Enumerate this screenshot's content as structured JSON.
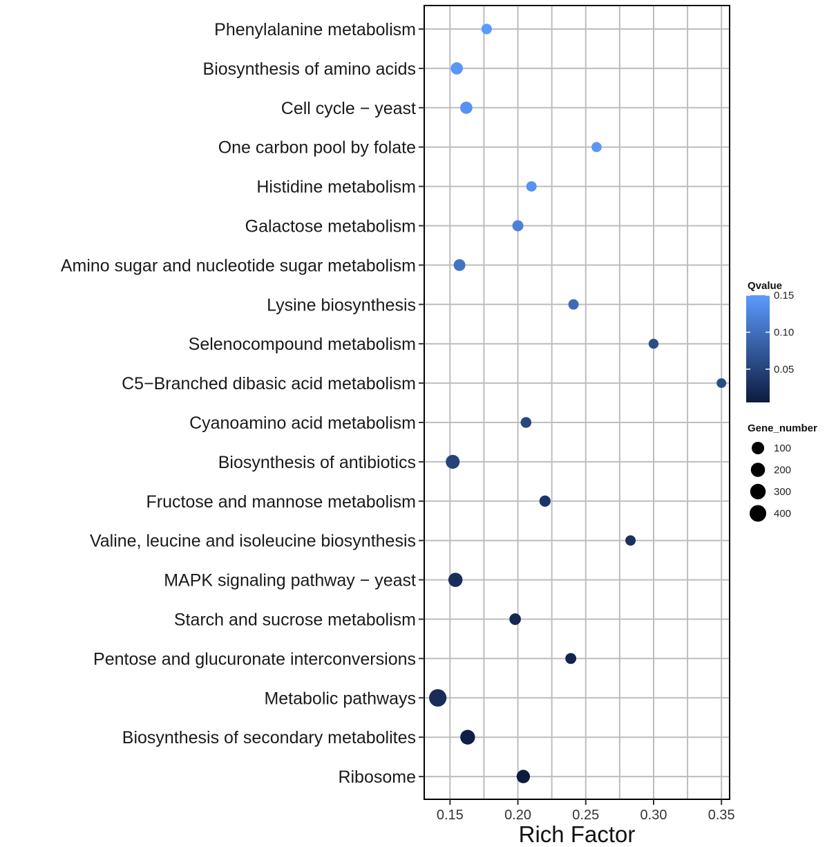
{
  "chart_data": {
    "type": "scatter",
    "title": "",
    "xlabel": "Rich Factor",
    "ylabel": "",
    "xlim": [
      0.131,
      0.356
    ],
    "xticks": [
      0.15,
      0.2,
      0.25,
      0.3,
      0.35
    ],
    "xtick_labels": [
      "0.15",
      "0.20",
      "0.25",
      "0.30",
      "0.35"
    ],
    "grid": true,
    "legend_position": "right",
    "categories": [
      "Phenylalanine metabolism",
      "Biosynthesis of amino acids",
      "Cell cycle − yeast",
      "One carbon pool by folate",
      "Histidine metabolism",
      "Galactose metabolism",
      "Amino sugar and nucleotide sugar metabolism",
      "Lysine biosynthesis",
      "Selenocompound metabolism",
      "C5−Branched dibasic acid metabolism",
      "Cyanoamino acid metabolism",
      "Biosynthesis of antibiotics",
      "Fructose and mannose metabolism",
      "Valine, leucine and isoleucine biosynthesis",
      "MAPK signaling pathway − yeast",
      "Starch and sucrose metabolism",
      "Pentose and glucuronate interconversions",
      "Metabolic pathways",
      "Biosynthesis of secondary metabolites",
      "Ribosome"
    ],
    "points": [
      {
        "pathway": "Phenylalanine metabolism",
        "rich_factor": 0.177,
        "qvalue": 0.15,
        "gene_number": 30
      },
      {
        "pathway": "Biosynthesis of amino acids",
        "rich_factor": 0.155,
        "qvalue": 0.145,
        "gene_number": 90
      },
      {
        "pathway": "Cell cycle − yeast",
        "rich_factor": 0.162,
        "qvalue": 0.14,
        "gene_number": 90
      },
      {
        "pathway": "One carbon pool by folate",
        "rich_factor": 0.258,
        "qvalue": 0.145,
        "gene_number": 20
      },
      {
        "pathway": "Histidine metabolism",
        "rich_factor": 0.21,
        "qvalue": 0.14,
        "gene_number": 25
      },
      {
        "pathway": "Galactose metabolism",
        "rich_factor": 0.2,
        "qvalue": 0.12,
        "gene_number": 45
      },
      {
        "pathway": "Amino sugar and nucleotide sugar metabolism",
        "rich_factor": 0.157,
        "qvalue": 0.105,
        "gene_number": 70
      },
      {
        "pathway": "Lysine biosynthesis",
        "rich_factor": 0.241,
        "qvalue": 0.095,
        "gene_number": 25
      },
      {
        "pathway": "Selenocompound metabolism",
        "rich_factor": 0.3,
        "qvalue": 0.06,
        "gene_number": 15
      },
      {
        "pathway": "C5−Branched dibasic acid metabolism",
        "rich_factor": 0.35,
        "qvalue": 0.06,
        "gene_number": 10
      },
      {
        "pathway": "Cyanoamino acid metabolism",
        "rich_factor": 0.206,
        "qvalue": 0.055,
        "gene_number": 35
      },
      {
        "pathway": "Biosynthesis of antibiotics",
        "rich_factor": 0.152,
        "qvalue": 0.05,
        "gene_number": 180
      },
      {
        "pathway": "Fructose and mannose metabolism",
        "rich_factor": 0.22,
        "qvalue": 0.035,
        "gene_number": 50
      },
      {
        "pathway": "Valine, leucine and isoleucine biosynthesis",
        "rich_factor": 0.283,
        "qvalue": 0.03,
        "gene_number": 25
      },
      {
        "pathway": "MAPK signaling pathway − yeast",
        "rich_factor": 0.154,
        "qvalue": 0.025,
        "gene_number": 200
      },
      {
        "pathway": "Starch and sucrose metabolism",
        "rich_factor": 0.198,
        "qvalue": 0.02,
        "gene_number": 60
      },
      {
        "pathway": "Pentose and glucuronate interconversions",
        "rich_factor": 0.239,
        "qvalue": 0.015,
        "gene_number": 40
      },
      {
        "pathway": "Metabolic pathways",
        "rich_factor": 0.141,
        "qvalue": 0.025,
        "gene_number": 480
      },
      {
        "pathway": "Biosynthesis of secondary metabolites",
        "rich_factor": 0.163,
        "qvalue": 0.01,
        "gene_number": 240
      },
      {
        "pathway": "Ribosome",
        "rich_factor": 0.204,
        "qvalue": 0.005,
        "gene_number": 150
      }
    ],
    "color_legend": {
      "title": "Qvalue",
      "min": 0.005,
      "max": 0.15,
      "ticks": [
        0.05,
        0.1,
        0.15
      ],
      "tick_labels": [
        "0.05",
        "0.10",
        "0.15"
      ],
      "low_color": "#0d1b3e",
      "high_color": "#5b9bff"
    },
    "size_legend": {
      "title": "Gene_number",
      "values": [
        100,
        200,
        300,
        400
      ],
      "labels": [
        "100",
        "200",
        "300",
        "400"
      ],
      "point_color": "#000000"
    }
  }
}
